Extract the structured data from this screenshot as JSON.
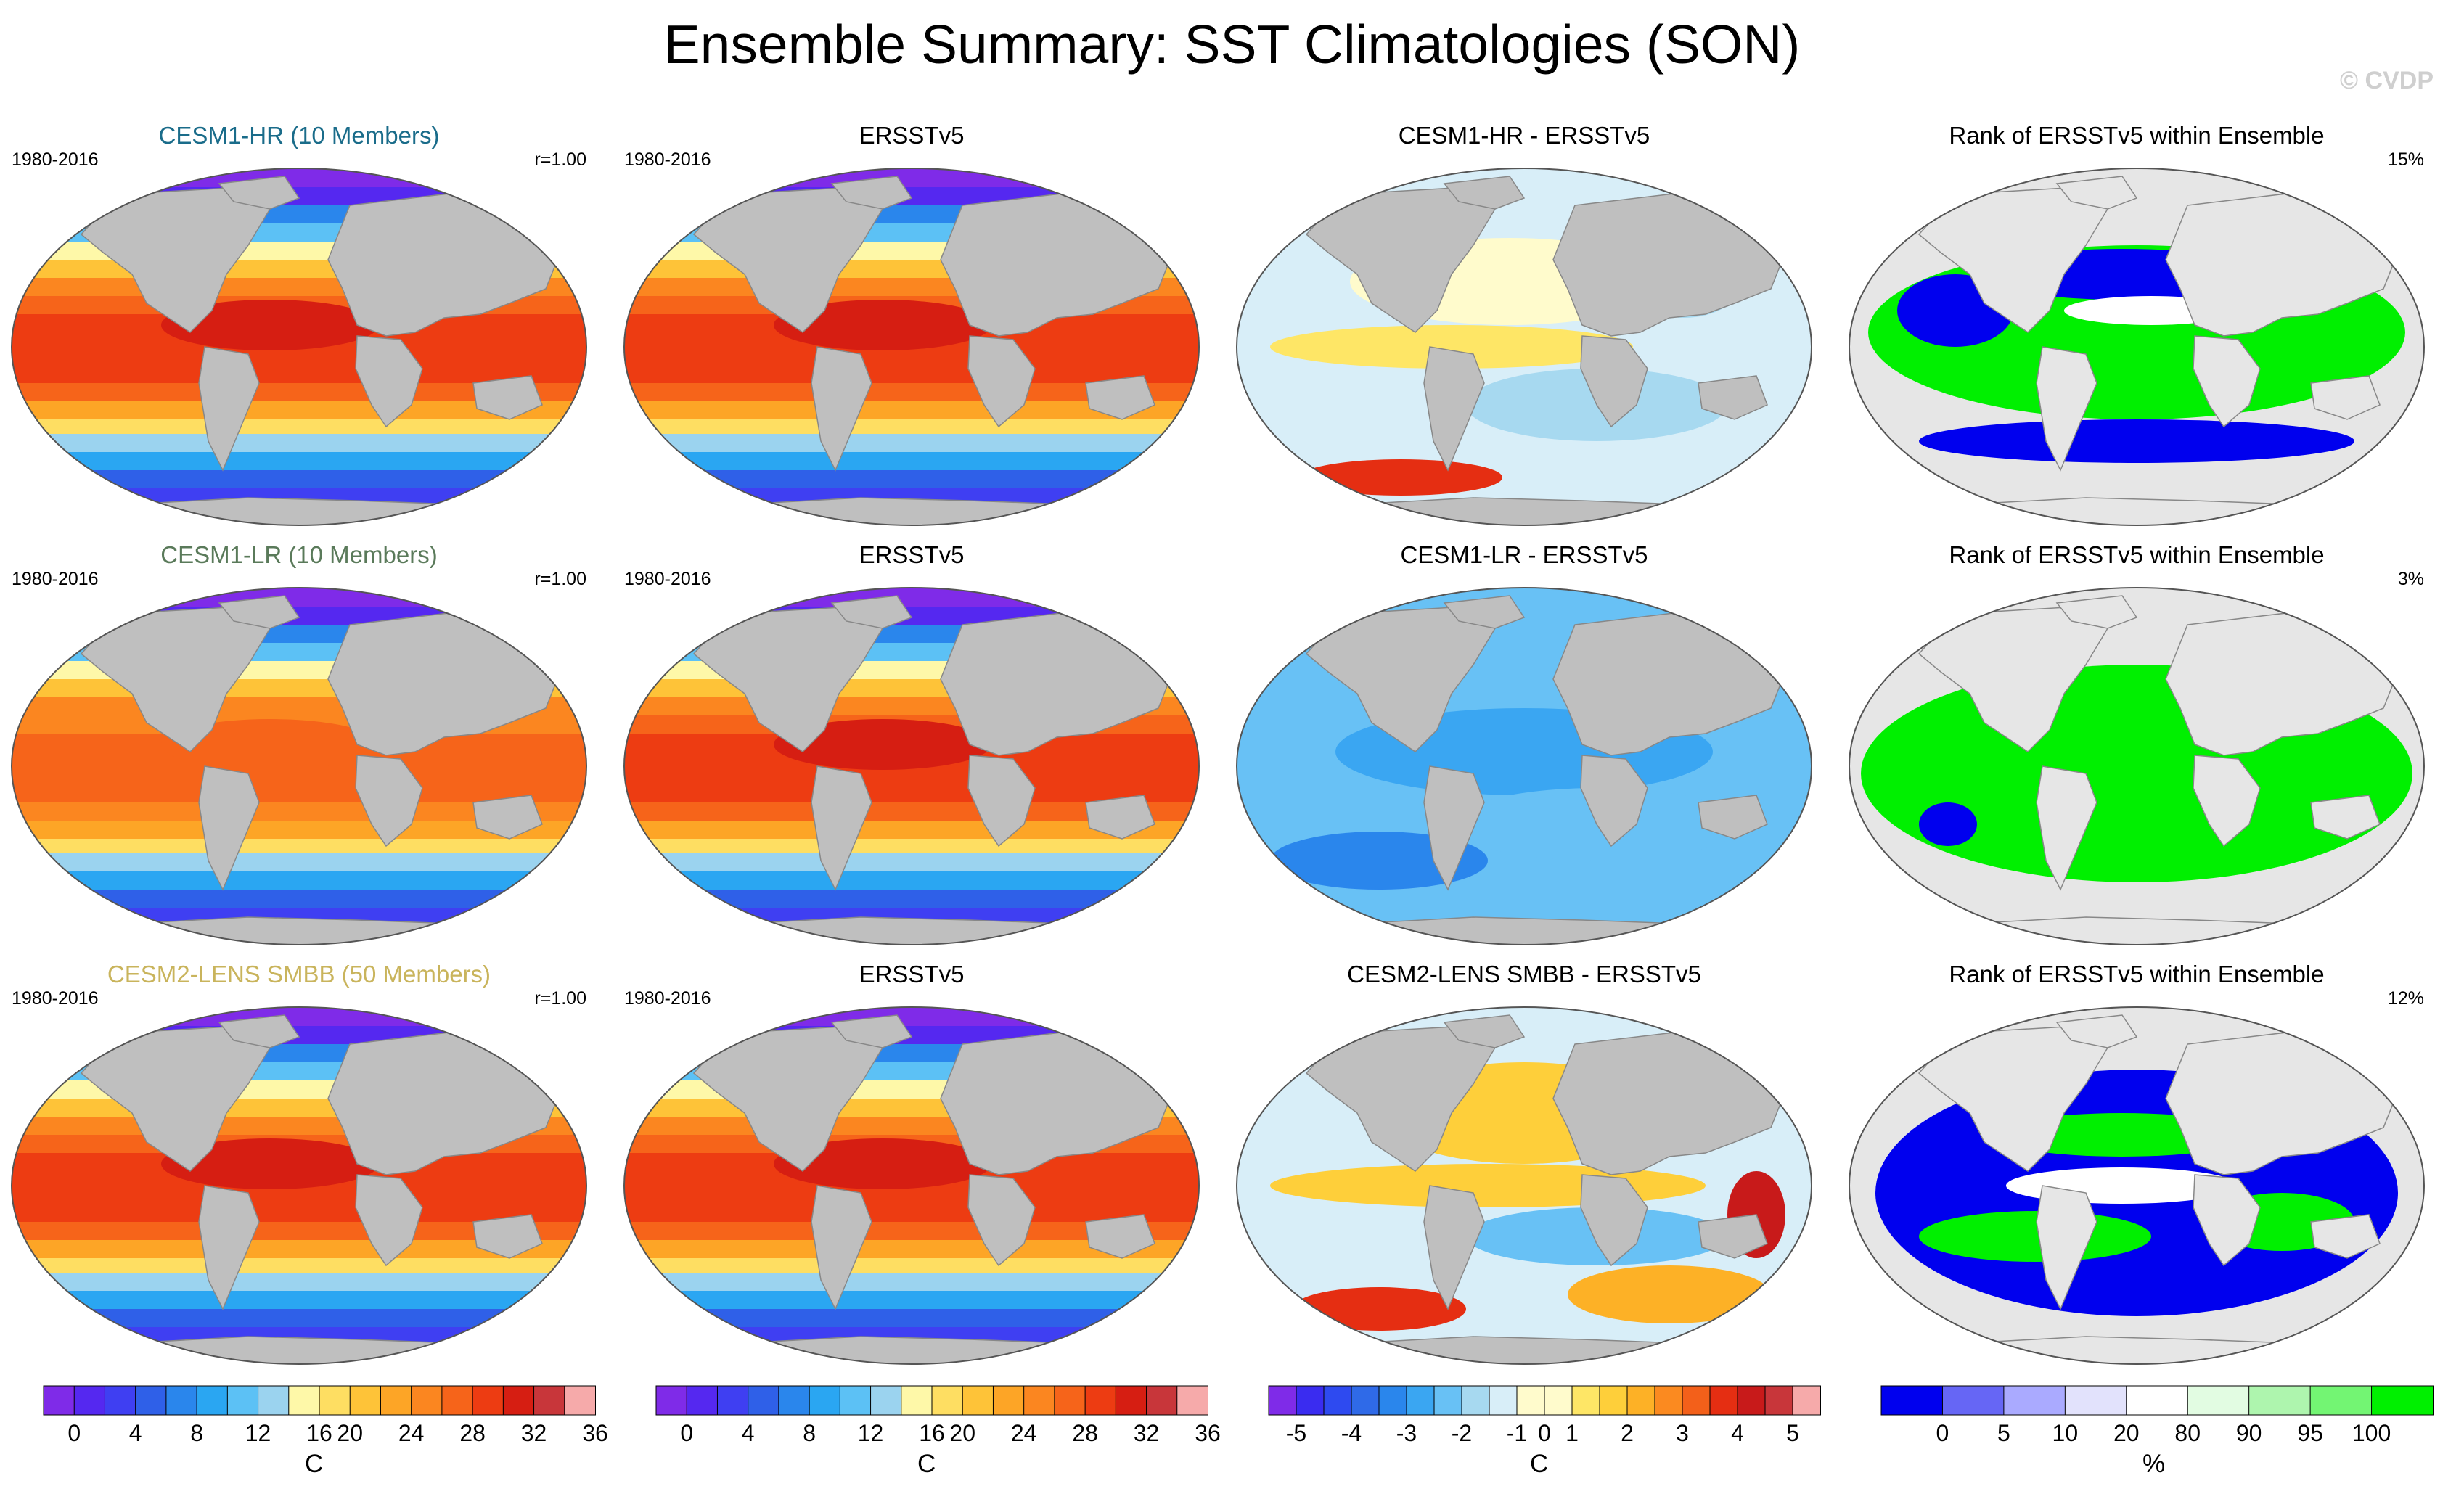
{
  "title": "Ensemble Summary: SST Climatologies (SON)",
  "watermark": "© CVDP",
  "colors": {
    "land": "#bfbfbf",
    "ocean_bg": "#d9d9d9",
    "sst_palette": [
      "#7f2be8",
      "#5528f0",
      "#3f3ff2",
      "#2f60e8",
      "#2a86ec",
      "#2aa6f2",
      "#5cc1f5",
      "#9bd3ef",
      "#fef8a8",
      "#fede62",
      "#fec338",
      "#fda526",
      "#fb8620",
      "#f6641a",
      "#ed3c12",
      "#d61e12",
      "#c8363a",
      "#f6aaaa"
    ],
    "diff_palette": [
      "#7f2be8",
      "#3a2cf0",
      "#2e4af0",
      "#2f6ae8",
      "#2a86ec",
      "#3aa6f2",
      "#68c1f5",
      "#a7d9f0",
      "#d8eef8",
      "#fffbcc",
      "#fee666",
      "#fecf3a",
      "#fdb126",
      "#fb8a20",
      "#f3601a",
      "#e52e12",
      "#c81a1a",
      "#c8363a",
      "#f6aaaa"
    ],
    "rank_palette": [
      "#0000ee",
      "#6666f5",
      "#aaaaff",
      "#e2e2fc",
      "#ffffff",
      "#e2fce2",
      "#aef5ae",
      "#73f573",
      "#00f000"
    ],
    "cesm1_hr_title": "#1a6c8a",
    "cesm1_lr_title": "#5a7a5a",
    "cesm2_title": "#c9b45c"
  },
  "rows": [
    {
      "model": "CESM1-HR (10 Members)",
      "period": "1980-2016",
      "pattern_corr": "r=1.00",
      "obs_title": "ERSSTv5",
      "obs_period": "1980-2016",
      "diff_title": "CESM1-HR - ERSSTv5",
      "rank_title": "Rank of ERSSTv5 within Ensemble",
      "rank_pct": "15%"
    },
    {
      "model": "CESM1-LR (10 Members)",
      "period": "1980-2016",
      "pattern_corr": "r=1.00",
      "obs_title": "ERSSTv5",
      "obs_period": "1980-2016",
      "diff_title": "CESM1-LR - ERSSTv5",
      "rank_title": "Rank of ERSSTv5 within Ensemble",
      "rank_pct": "3%"
    },
    {
      "model": "CESM2-LENS SMBB (50 Members)",
      "period": "1980-2016",
      "pattern_corr": "r=1.00",
      "obs_title": "ERSSTv5",
      "obs_period": "1980-2016",
      "diff_title": "CESM2-LENS SMBB - ERSSTv5",
      "rank_title": "Rank of ERSSTv5 within Ensemble",
      "rank_pct": "12%"
    }
  ],
  "colorbars": [
    {
      "name": "sst-model",
      "unit": "C",
      "labels": [
        "0",
        "4",
        "8",
        "12",
        "16",
        "20",
        "24",
        "28",
        "32",
        "36"
      ],
      "label_slots": [
        1,
        3,
        5,
        7,
        9,
        10,
        12,
        14,
        16,
        18
      ],
      "palette": "sst_palette",
      "slots": 18
    },
    {
      "name": "sst-obs",
      "unit": "C",
      "labels": [
        "0",
        "4",
        "8",
        "12",
        "16",
        "20",
        "24",
        "28",
        "32",
        "36"
      ],
      "label_slots": [
        1,
        3,
        5,
        7,
        9,
        10,
        12,
        14,
        16,
        18
      ],
      "palette": "sst_palette",
      "slots": 18
    },
    {
      "name": "diff",
      "unit": "C",
      "labels": [
        "-5",
        "-4",
        "-3",
        "-2",
        "-1",
        "0",
        "1",
        "2",
        "3",
        "4",
        "5"
      ],
      "label_slots": [
        1,
        3,
        5,
        7,
        9,
        10,
        11,
        13,
        15,
        17,
        19
      ],
      "palette": "diff_palette",
      "slots": 20
    },
    {
      "name": "rank",
      "unit": "%",
      "labels": [
        "0",
        "5",
        "10",
        "20",
        "80",
        "90",
        "95",
        "100"
      ],
      "label_slots": [
        1,
        2,
        3,
        4,
        5,
        6,
        7,
        8
      ],
      "palette": "rank_palette",
      "slots": 9
    }
  ],
  "chart_data": [
    {
      "type": "heatmap",
      "title": "CESM1-HR (10 Members)",
      "field": "SST climatology SON",
      "units": "C",
      "range": [
        0,
        36
      ]
    },
    {
      "type": "heatmap",
      "title": "ERSSTv5",
      "field": "SST climatology SON",
      "units": "C",
      "range": [
        0,
        36
      ]
    },
    {
      "type": "heatmap",
      "title": "CESM1-HR - ERSSTv5",
      "field": "SST difference",
      "units": "C",
      "range": [
        -5,
        5
      ]
    },
    {
      "type": "heatmap",
      "title": "Rank of ERSSTv5 within Ensemble",
      "field": "rank",
      "units": "%",
      "summary_value": "15%"
    },
    {
      "type": "heatmap",
      "title": "CESM1-LR (10 Members)",
      "field": "SST climatology SON",
      "units": "C",
      "range": [
        0,
        36
      ]
    },
    {
      "type": "heatmap",
      "title": "ERSSTv5",
      "field": "SST climatology SON",
      "units": "C",
      "range": [
        0,
        36
      ]
    },
    {
      "type": "heatmap",
      "title": "CESM1-LR - ERSSTv5",
      "field": "SST difference",
      "units": "C",
      "range": [
        -5,
        5
      ]
    },
    {
      "type": "heatmap",
      "title": "Rank of ERSSTv5 within Ensemble",
      "field": "rank",
      "units": "%",
      "summary_value": "3%"
    },
    {
      "type": "heatmap",
      "title": "CESM2-LENS SMBB (50 Members)",
      "field": "SST climatology SON",
      "units": "C",
      "range": [
        0,
        36
      ]
    },
    {
      "type": "heatmap",
      "title": "ERSSTv5",
      "field": "SST climatology SON",
      "units": "C",
      "range": [
        0,
        36
      ]
    },
    {
      "type": "heatmap",
      "title": "CESM2-LENS SMBB - ERSSTv5",
      "field": "SST difference",
      "units": "C",
      "range": [
        -5,
        5
      ]
    },
    {
      "type": "heatmap",
      "title": "Rank of ERSSTv5 within Ensemble",
      "field": "rank",
      "units": "%",
      "summary_value": "12%"
    }
  ]
}
